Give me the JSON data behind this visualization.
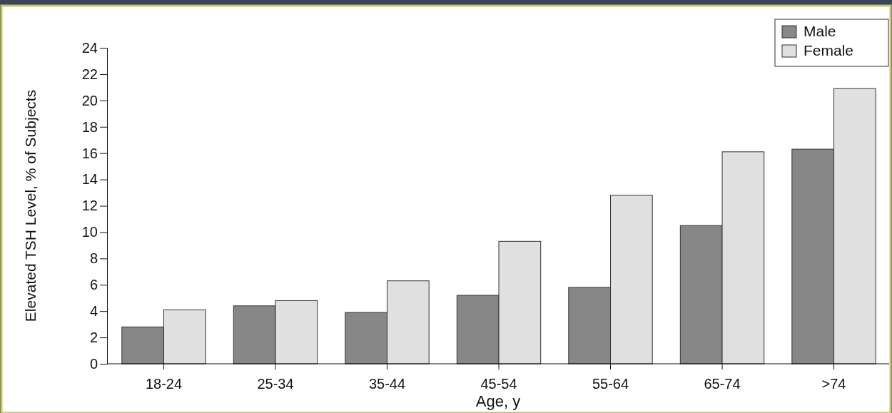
{
  "chart_data": {
    "type": "bar",
    "xlabel": "Age, y",
    "ylabel": "Elevated TSH Level, % of Subjects",
    "categories": [
      "18-24",
      "25-34",
      "35-44",
      "45-54",
      "55-64",
      "65-74",
      ">74"
    ],
    "series": [
      {
        "name": "Male",
        "color": "#878787",
        "values": [
          2.8,
          4.4,
          3.9,
          5.2,
          5.8,
          10.5,
          16.3
        ]
      },
      {
        "name": "Female",
        "color": "#e0e0e0",
        "values": [
          4.1,
          4.8,
          6.3,
          9.3,
          12.8,
          16.1,
          20.9
        ]
      }
    ],
    "ylim": [
      0,
      24
    ],
    "yticks": [
      0,
      2,
      4,
      6,
      8,
      10,
      12,
      14,
      16,
      18,
      20,
      22,
      24
    ],
    "grid": false,
    "legend": "top right"
  }
}
